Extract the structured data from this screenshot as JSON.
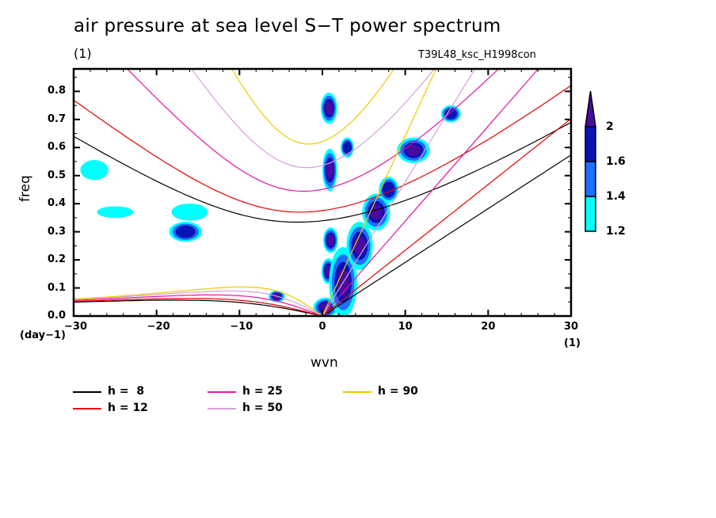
{
  "chart_data": {
    "type": "contour",
    "title": "air pressure at sea level S−T power spectrum",
    "subtitle": "(1)",
    "run_id": "T39L48_ksc_H1998con",
    "xlabel": "wvn",
    "ylabel": "freq",
    "x_unit": "(1)",
    "y_unit": "(day−1)",
    "xlim": [
      -30,
      30
    ],
    "ylim": [
      0,
      0.88
    ],
    "x_ticks": [
      -30,
      -20,
      -10,
      0,
      10,
      20,
      30
    ],
    "x_tick_labels": [
      "−30",
      "−20",
      "−10",
      "0",
      "10",
      "20",
      "30"
    ],
    "y_ticks": [
      0.0,
      0.1,
      0.2,
      0.3,
      0.4,
      0.5,
      0.6,
      0.7,
      0.8
    ],
    "y_tick_labels": [
      "0.0",
      "0.1",
      "0.2",
      "0.3",
      "0.4",
      "0.5",
      "0.6",
      "0.7",
      "0.8"
    ],
    "colorbar": {
      "levels": [
        1.2,
        1.4,
        1.6,
        2
      ],
      "labels": [
        "1.2",
        "1.4",
        "1.6",
        "2"
      ],
      "colors": [
        "#00ffff",
        "#1e6eff",
        "#0a14b4",
        "#4b0aa0"
      ],
      "extend": "max"
    },
    "dispersion_curves": [
      {
        "name": "h = 8",
        "label": "h =  8",
        "equivalent_depth": 8,
        "color": "#000000"
      },
      {
        "name": "h = 12",
        "label": "h = 12",
        "equivalent_depth": 12,
        "color": "#e60000"
      },
      {
        "name": "h = 25",
        "label": "h = 25",
        "equivalent_depth": 25,
        "color": "#e614a0"
      },
      {
        "name": "h = 50",
        "label": "h = 50",
        "equivalent_depth": 50,
        "color": "#d7a0dc"
      },
      {
        "name": "h = 90",
        "label": "h = 90",
        "equivalent_depth": 90,
        "color": "#f0c800"
      }
    ],
    "contour_blobs": [
      {
        "x": 0.8,
        "y": 0.74,
        "rx": 0.8,
        "ry": 0.05,
        "level": 2
      },
      {
        "x": 0.9,
        "y": 0.52,
        "rx": 0.7,
        "ry": 0.07,
        "level": 2
      },
      {
        "x": 1.0,
        "y": 0.27,
        "rx": 0.7,
        "ry": 0.04,
        "level": 2
      },
      {
        "x": 0.7,
        "y": 0.16,
        "rx": 0.6,
        "ry": 0.04,
        "level": 2
      },
      {
        "x": 0.4,
        "y": 0.03,
        "rx": 1.3,
        "ry": 0.03,
        "level": 2
      },
      {
        "x": 2.5,
        "y": 0.12,
        "rx": 1.5,
        "ry": 0.12,
        "level": 2
      },
      {
        "x": 4.5,
        "y": 0.25,
        "rx": 1.4,
        "ry": 0.08,
        "level": 2
      },
      {
        "x": 6.5,
        "y": 0.37,
        "rx": 1.5,
        "ry": 0.06,
        "level": 2
      },
      {
        "x": 8.0,
        "y": 0.45,
        "rx": 1.0,
        "ry": 0.04,
        "level": 1.6
      },
      {
        "x": 11.0,
        "y": 0.59,
        "rx": 1.8,
        "ry": 0.04,
        "level": 2
      },
      {
        "x": 15.5,
        "y": 0.72,
        "rx": 1.0,
        "ry": 0.025,
        "level": 1.6
      },
      {
        "x": -16.5,
        "y": 0.3,
        "rx": 1.8,
        "ry": 0.03,
        "level": 1.6
      },
      {
        "x": -5.5,
        "y": 0.07,
        "rx": 0.8,
        "ry": 0.015,
        "level": 2
      },
      {
        "x": 3.0,
        "y": 0.6,
        "rx": 0.6,
        "ry": 0.03,
        "level": 1.6
      },
      {
        "x": -16.0,
        "y": 0.37,
        "rx": 2.0,
        "ry": 0.025,
        "level": 1.2
      },
      {
        "x": -25.0,
        "y": 0.37,
        "rx": 2.0,
        "ry": 0.015,
        "level": 1.2
      },
      {
        "x": -27.5,
        "y": 0.52,
        "rx": 1.5,
        "ry": 0.03,
        "level": 1.2
      }
    ]
  },
  "legend": {
    "items": [
      {
        "label": "h =  8",
        "color": "#000000"
      },
      {
        "label": "h = 12",
        "color": "#e60000"
      },
      {
        "label": "h = 25",
        "color": "#e614a0"
      },
      {
        "label": "h = 50",
        "color": "#d7a0dc"
      },
      {
        "label": "h = 90",
        "color": "#f0c800"
      }
    ]
  }
}
